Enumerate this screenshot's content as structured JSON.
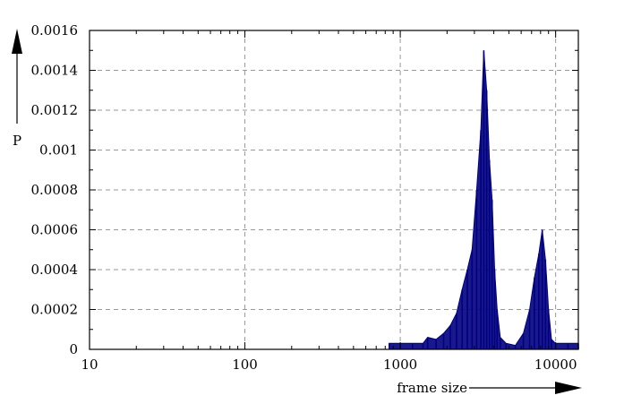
{
  "chart_data": {
    "type": "line",
    "title": "",
    "xlabel": "frame size",
    "ylabel": "P",
    "x_scale": "log",
    "xlim": [
      10,
      14000
    ],
    "ylim": [
      0,
      0.0016
    ],
    "grid": true,
    "grid_style": "dashed",
    "x_ticks": [
      10,
      100,
      1000,
      10000
    ],
    "x_tick_labels": [
      "10",
      "100",
      "1000",
      "10000"
    ],
    "y_ticks": [
      0,
      0.0002,
      0.0004,
      0.0006,
      0.0008,
      0.001,
      0.0012,
      0.0014,
      0.0016
    ],
    "y_tick_labels": [
      "0",
      "0.0002",
      "0.0004",
      "0.0006",
      "0.0008",
      "0.001",
      "0.0012",
      "0.0014",
      "0.0016"
    ],
    "series": [
      {
        "color": "#000080",
        "points": [
          [
            850,
            3e-05
          ],
          [
            1000,
            3e-05
          ],
          [
            1200,
            3e-05
          ],
          [
            1400,
            3e-05
          ],
          [
            1500,
            6e-05
          ],
          [
            1700,
            5e-05
          ],
          [
            1900,
            8e-05
          ],
          [
            2100,
            0.00012
          ],
          [
            2300,
            0.00018
          ],
          [
            2500,
            0.0003
          ],
          [
            2700,
            0.0004
          ],
          [
            2900,
            0.0005
          ],
          [
            3100,
            0.0008
          ],
          [
            3300,
            0.0011
          ],
          [
            3450,
            0.0015
          ],
          [
            3600,
            0.0013
          ],
          [
            3750,
            0.00095
          ],
          [
            3900,
            0.00075
          ],
          [
            4050,
            0.0004
          ],
          [
            4200,
            0.0002
          ],
          [
            4400,
            6e-05
          ],
          [
            4800,
            3e-05
          ],
          [
            5500,
            2e-05
          ],
          [
            6200,
            8e-05
          ],
          [
            6800,
            0.0002
          ],
          [
            7300,
            0.00036
          ],
          [
            7800,
            0.00048
          ],
          [
            8200,
            0.0006
          ],
          [
            8600,
            0.00045
          ],
          [
            9000,
            0.0002
          ],
          [
            9400,
            5e-05
          ],
          [
            10000,
            3e-05
          ],
          [
            12000,
            3e-05
          ],
          [
            14000,
            3e-05
          ]
        ]
      }
    ]
  }
}
